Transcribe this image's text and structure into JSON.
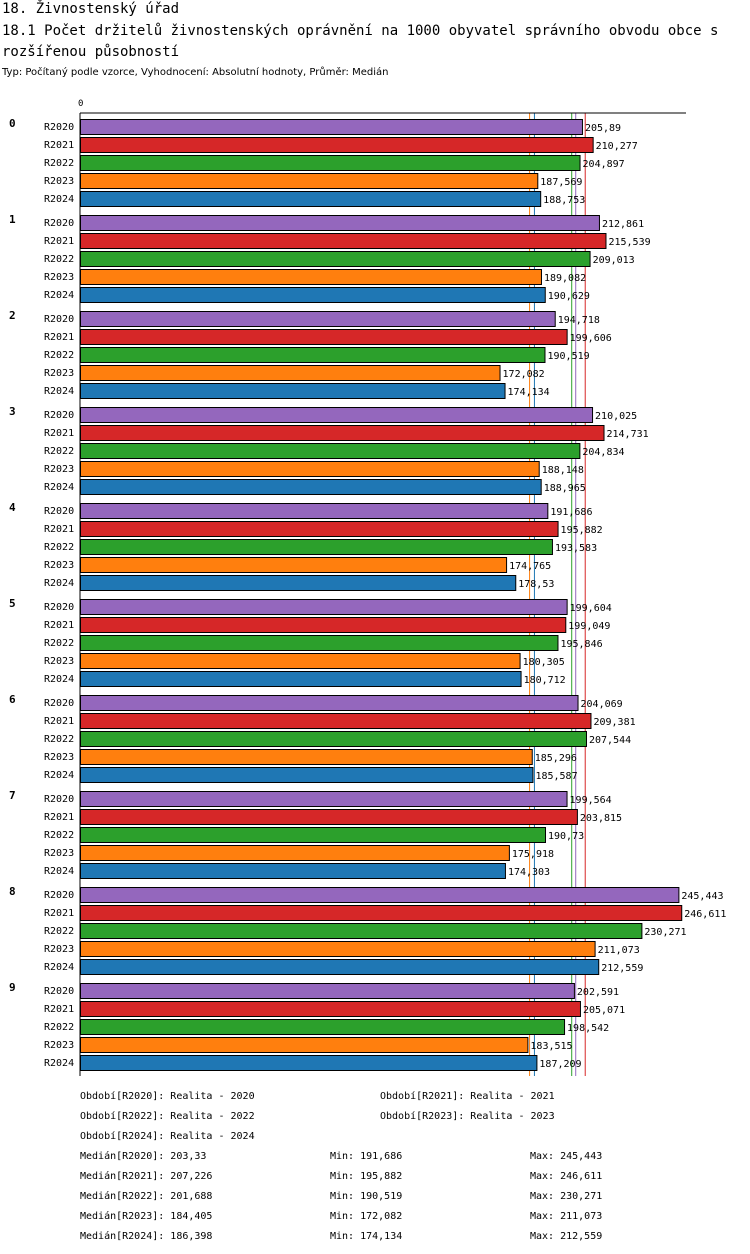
{
  "header": {
    "title": "18. Živnostenský úřad",
    "subtitle": "18.1 Počet držitelů živnostenských oprávnění na 1000 obyvatel správního obvodu obce s rozšířenou působností",
    "info": "Typ: Počítaný podle vzorce, Vyhodnocení: Absolutní hodnoty, Průměr: Medián"
  },
  "chart_data": {
    "type": "bar",
    "orientation": "horizontal",
    "axis_start_label": "0",
    "xlim": [
      0,
      261.3
    ],
    "series": [
      {
        "name": "R2020",
        "color": "#9467bd"
      },
      {
        "name": "R2021",
        "color": "#d62728"
      },
      {
        "name": "R2022",
        "color": "#2ca02c"
      },
      {
        "name": "R2023",
        "color": "#ff7f0e"
      },
      {
        "name": "R2024",
        "color": "#1f77b4"
      }
    ],
    "groups": [
      {
        "label": "0",
        "values": [
          205.89,
          210.277,
          204.897,
          187.569,
          188.753
        ],
        "texts": [
          "205,89",
          "210,277",
          "204,897",
          "187,569",
          "188,753"
        ]
      },
      {
        "label": "1",
        "values": [
          212.861,
          215.539,
          209.013,
          189.082,
          190.629
        ],
        "texts": [
          "212,861",
          "215,539",
          "209,013",
          "189,082",
          "190,629"
        ]
      },
      {
        "label": "2",
        "values": [
          194.718,
          199.606,
          190.519,
          172.082,
          174.134
        ],
        "texts": [
          "194,718",
          "199,606",
          "190,519",
          "172,082",
          "174,134"
        ]
      },
      {
        "label": "3",
        "values": [
          210.025,
          214.731,
          204.834,
          188.148,
          188.965
        ],
        "texts": [
          "210,025",
          "214,731",
          "204,834",
          "188,148",
          "188,965"
        ]
      },
      {
        "label": "4",
        "values": [
          191.686,
          195.882,
          193.583,
          174.765,
          178.53
        ],
        "texts": [
          "191,686",
          "195,882",
          "193,583",
          "174,765",
          "178,53"
        ]
      },
      {
        "label": "5",
        "values": [
          199.604,
          199.049,
          195.846,
          180.305,
          180.712
        ],
        "texts": [
          "199,604",
          "199,049",
          "195,846",
          "180,305",
          "180,712"
        ]
      },
      {
        "label": "6",
        "values": [
          204.069,
          209.381,
          207.544,
          185.296,
          185.587
        ],
        "texts": [
          "204,069",
          "209,381",
          "207,544",
          "185,296",
          "185,587"
        ]
      },
      {
        "label": "7",
        "values": [
          199.564,
          203.815,
          190.73,
          175.918,
          174.303
        ],
        "texts": [
          "199,564",
          "203,815",
          "190,73",
          "175,918",
          "174,303"
        ]
      },
      {
        "label": "8",
        "values": [
          245.443,
          246.611,
          230.271,
          211.073,
          212.559
        ],
        "texts": [
          "245,443",
          "246,611",
          "230,271",
          "211,073",
          "212,559"
        ]
      },
      {
        "label": "9",
        "values": [
          202.591,
          205.071,
          198.542,
          183.515,
          187.209
        ],
        "texts": [
          "202,591",
          "205,071",
          "198,542",
          "183,515",
          "187,209"
        ]
      }
    ],
    "reference_lines": [
      {
        "series": "R2020",
        "value": 203.33
      },
      {
        "series": "R2021",
        "value": 207.226
      },
      {
        "series": "R2022",
        "value": 201.688
      },
      {
        "series": "R2023",
        "value": 184.405
      },
      {
        "series": "R2024",
        "value": 186.398
      }
    ]
  },
  "legend": {
    "periods": [
      "Období[R2020]: Realita - 2020",
      "Období[R2021]: Realita - 2021",
      "Období[R2022]: Realita - 2022",
      "Období[R2023]: Realita - 2023",
      "Období[R2024]: Realita - 2024"
    ],
    "stats": [
      {
        "median": "Medián[R2020]: 203,33",
        "min": "Min: 191,686",
        "max": "Max: 245,443"
      },
      {
        "median": "Medián[R2021]: 207,226",
        "min": "Min: 195,882",
        "max": "Max: 246,611"
      },
      {
        "median": "Medián[R2022]: 201,688",
        "min": "Min: 190,519",
        "max": "Max: 230,271"
      },
      {
        "median": "Medián[R2023]: 184,405",
        "min": "Min: 172,082",
        "max": "Max: 211,073"
      },
      {
        "median": "Medián[R2024]: 186,398",
        "min": "Min: 174,134",
        "max": "Max: 212,559"
      }
    ]
  }
}
